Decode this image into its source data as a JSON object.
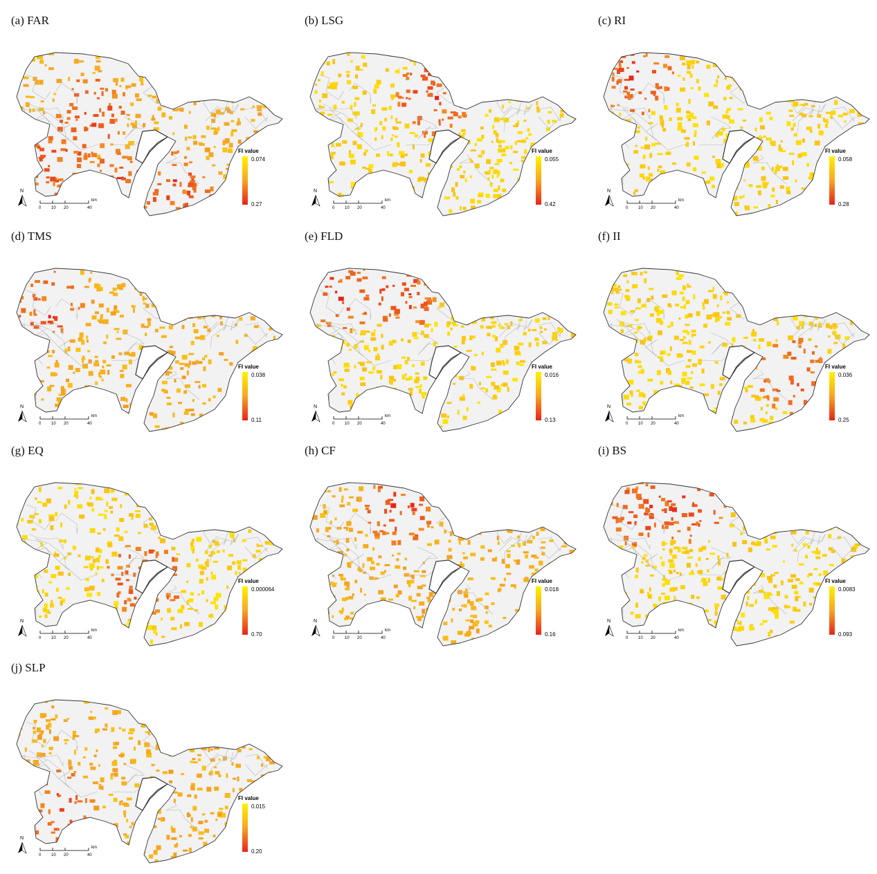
{
  "figure": {
    "legend_title": "FI value",
    "scale_unit": "km",
    "scale_ticks": [
      "0",
      "10",
      "20",
      "40"
    ],
    "north_label": "N",
    "colors": {
      "low": "#fff200",
      "mid": "#f5a623",
      "high": "#e8231a",
      "land": "#f2f2f2",
      "outline": "#333333",
      "boundaries": "#b8b8b8"
    }
  },
  "panels": [
    {
      "title": "(a) FAR",
      "legend_top": "0.074",
      "legend_bottom": "0.27",
      "hotspots": [
        "southwest",
        "peninsula",
        "chiba-south",
        "central"
      ],
      "base": "yellow-orange"
    },
    {
      "title": "(b) LSG",
      "legend_top": "0.055",
      "legend_bottom": "0.42",
      "hotspots": [
        "center-north"
      ],
      "base": "yellow"
    },
    {
      "title": "(c) RI",
      "legend_top": "0.058",
      "legend_bottom": "0.28",
      "hotspots": [
        "northwest"
      ],
      "base": "yellow"
    },
    {
      "title": "(d) TMS",
      "legend_top": "0.038",
      "legend_bottom": "0.11",
      "hotspots": [
        "west"
      ],
      "base": "yellow-orange"
    },
    {
      "title": "(e) FLD",
      "legend_top": "0.016",
      "legend_bottom": "0.13",
      "hotspots": [
        "north",
        "northwest"
      ],
      "base": "yellow"
    },
    {
      "title": "(f) II",
      "legend_top": "0.036",
      "legend_bottom": "0.25",
      "hotspots": [
        "chiba"
      ],
      "base": "yellow"
    },
    {
      "title": "(g) EQ",
      "legend_top": "0.000064",
      "legend_bottom": "0.70",
      "hotspots": [
        "bay"
      ],
      "base": "yellow"
    },
    {
      "title": "(h) CF",
      "legend_top": "0.018",
      "legend_bottom": "0.16",
      "hotspots": [
        "north"
      ],
      "base": "yellow-orange"
    },
    {
      "title": "(i) BS",
      "legend_top": "0.0083",
      "legend_bottom": "0.093",
      "hotspots": [
        "north",
        "northwest"
      ],
      "base": "yellow"
    },
    {
      "title": "(j) SLP",
      "legend_top": "0.015",
      "legend_bottom": "0.20",
      "hotspots": [
        "southwest"
      ],
      "base": "yellow-orange"
    }
  ]
}
